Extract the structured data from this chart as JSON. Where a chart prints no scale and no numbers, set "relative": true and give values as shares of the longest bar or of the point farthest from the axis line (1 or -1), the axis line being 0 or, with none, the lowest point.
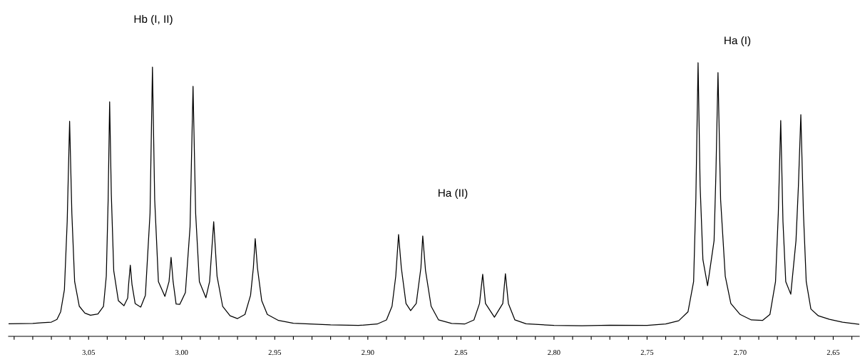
{
  "chart_data": {
    "type": "line",
    "relative": true,
    "grid": false,
    "legend": false,
    "marker": "none",
    "line_style": "solid",
    "tick_labels": "x",
    "xlim": [
      3.093,
      2.636
    ],
    "xticks": [
      {
        "value": 3.09,
        "label": null
      },
      {
        "value": 3.08,
        "label": null
      },
      {
        "value": 3.07,
        "label": null
      },
      {
        "value": 3.06,
        "label": null
      },
      {
        "value": 3.05,
        "label": "3.05"
      },
      {
        "value": 3.04,
        "label": null
      },
      {
        "value": 3.03,
        "label": null
      },
      {
        "value": 3.02,
        "label": null
      },
      {
        "value": 3.01,
        "label": null
      },
      {
        "value": 3.0,
        "label": "3.00"
      },
      {
        "value": 2.99,
        "label": null
      },
      {
        "value": 2.98,
        "label": null
      },
      {
        "value": 2.97,
        "label": null
      },
      {
        "value": 2.96,
        "label": null
      },
      {
        "value": 2.95,
        "label": "2.95"
      },
      {
        "value": 2.94,
        "label": null
      },
      {
        "value": 2.93,
        "label": null
      },
      {
        "value": 2.92,
        "label": null
      },
      {
        "value": 2.91,
        "label": null
      },
      {
        "value": 2.9,
        "label": "2.90"
      },
      {
        "value": 2.89,
        "label": null
      },
      {
        "value": 2.88,
        "label": null
      },
      {
        "value": 2.87,
        "label": null
      },
      {
        "value": 2.86,
        "label": null
      },
      {
        "value": 2.85,
        "label": "2.85"
      },
      {
        "value": 2.84,
        "label": null
      },
      {
        "value": 2.83,
        "label": null
      },
      {
        "value": 2.82,
        "label": null
      },
      {
        "value": 2.81,
        "label": null
      },
      {
        "value": 2.8,
        "label": "2.80"
      },
      {
        "value": 2.79,
        "label": null
      },
      {
        "value": 2.78,
        "label": null
      },
      {
        "value": 2.77,
        "label": null
      },
      {
        "value": 2.76,
        "label": null
      },
      {
        "value": 2.75,
        "label": "2.75"
      },
      {
        "value": 2.74,
        "label": null
      },
      {
        "value": 2.73,
        "label": null
      },
      {
        "value": 2.72,
        "label": null
      },
      {
        "value": 2.71,
        "label": null
      },
      {
        "value": 2.7,
        "label": "2.70"
      },
      {
        "value": 2.69,
        "label": null
      },
      {
        "value": 2.68,
        "label": null
      },
      {
        "value": 2.67,
        "label": null
      },
      {
        "value": 2.66,
        "label": null
      },
      {
        "value": 2.65,
        "label": "2.65"
      },
      {
        "value": 2.64,
        "label": null
      }
    ],
    "annotations": [
      "Hb (I, II)",
      "Ha (II)",
      "Ha (I)"
    ],
    "series": [
      {
        "color": "#000000",
        "x": [
          3.093,
          3.08,
          3.075,
          3.07,
          3.067,
          3.065,
          3.063,
          3.0615,
          3.0602,
          3.059,
          3.0575,
          3.055,
          3.052,
          3.049,
          3.045,
          3.042,
          3.0405,
          3.0395,
          3.0387,
          3.0378,
          3.0365,
          3.034,
          3.031,
          3.029,
          3.0285,
          3.0276,
          3.0267,
          3.025,
          3.022,
          3.0195,
          3.017,
          3.0157,
          3.0145,
          3.0125,
          3.009,
          3.0068,
          3.0057,
          3.0046,
          3.003,
          3.001,
          2.998,
          2.9955,
          2.9939,
          2.9925,
          2.9905,
          2.987,
          2.985,
          2.9828,
          2.981,
          2.978,
          2.974,
          2.97,
          2.966,
          2.963,
          2.9615,
          2.9605,
          2.9593,
          2.957,
          2.954,
          2.948,
          2.94,
          2.92,
          2.905,
          2.895,
          2.89,
          2.887,
          2.885,
          2.8835,
          2.882,
          2.8795,
          2.877,
          2.874,
          2.8715,
          2.8705,
          2.869,
          2.866,
          2.862,
          2.855,
          2.848,
          2.843,
          2.84,
          2.8383,
          2.8368,
          2.832,
          2.8275,
          2.8261,
          2.8245,
          2.821,
          2.815,
          2.8,
          2.785,
          2.77,
          2.75,
          2.74,
          2.733,
          2.728,
          2.725,
          2.7238,
          2.7226,
          2.7215,
          2.72,
          2.7175,
          2.714,
          2.713,
          2.7119,
          2.7105,
          2.708,
          2.705,
          2.7,
          2.694,
          2.688,
          2.684,
          2.681,
          2.6795,
          2.6782,
          2.677,
          2.6755,
          2.6728,
          2.67,
          2.6687,
          2.6674,
          2.666,
          2.6645,
          2.662,
          2.658,
          2.652,
          2.645,
          2.636
        ],
        "values": [
          0.046,
          0.047,
          0.05,
          0.052,
          0.062,
          0.09,
          0.17,
          0.42,
          0.786,
          0.45,
          0.2,
          0.11,
          0.085,
          0.077,
          0.082,
          0.11,
          0.22,
          0.5,
          0.857,
          0.52,
          0.24,
          0.13,
          0.112,
          0.14,
          0.19,
          0.26,
          0.19,
          0.12,
          0.107,
          0.15,
          0.45,
          0.984,
          0.5,
          0.2,
          0.146,
          0.2,
          0.289,
          0.2,
          0.118,
          0.117,
          0.16,
          0.4,
          0.914,
          0.45,
          0.2,
          0.141,
          0.2,
          0.419,
          0.22,
          0.11,
          0.075,
          0.065,
          0.08,
          0.15,
          0.25,
          0.357,
          0.25,
          0.13,
          0.08,
          0.058,
          0.048,
          0.042,
          0.04,
          0.045,
          0.06,
          0.11,
          0.22,
          0.372,
          0.25,
          0.12,
          0.094,
          0.12,
          0.25,
          0.367,
          0.24,
          0.11,
          0.06,
          0.047,
          0.045,
          0.06,
          0.12,
          0.227,
          0.12,
          0.07,
          0.12,
          0.229,
          0.12,
          0.06,
          0.046,
          0.04,
          0.039,
          0.041,
          0.04,
          0.045,
          0.057,
          0.09,
          0.2,
          0.5,
          1.0,
          0.55,
          0.28,
          0.185,
          0.35,
          0.6,
          0.964,
          0.5,
          0.22,
          0.12,
          0.08,
          0.06,
          0.058,
          0.08,
          0.2,
          0.45,
          0.789,
          0.42,
          0.2,
          0.154,
          0.35,
          0.55,
          0.81,
          0.45,
          0.2,
          0.1,
          0.075,
          0.062,
          0.052,
          0.044
        ]
      }
    ]
  }
}
